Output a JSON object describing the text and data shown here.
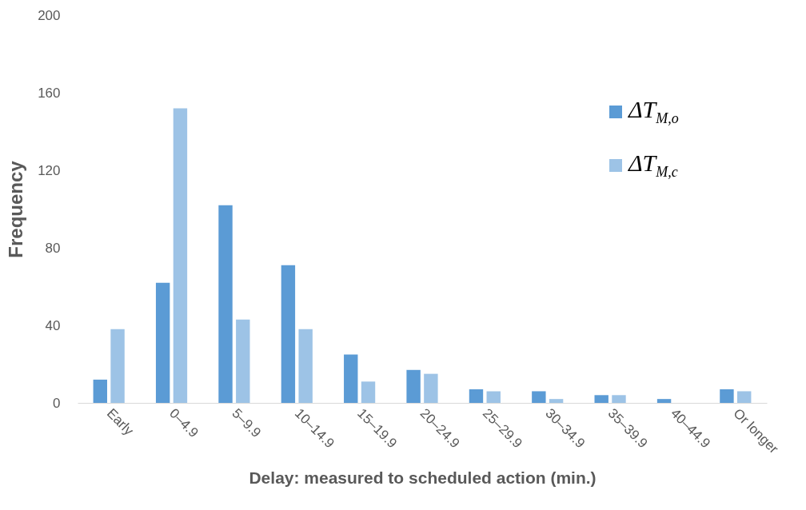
{
  "chart_data": {
    "type": "bar",
    "xlabel": "Delay: measured to scheduled action (min.)",
    "ylabel": "Frequency",
    "categories": [
      "Early",
      "0–4.9",
      "5–9.9",
      "10–14.9",
      "15–19.9",
      "20–24.9",
      "25–29.9",
      "30–34.9",
      "35–39.9",
      "40–44.9",
      "Or longer"
    ],
    "series": [
      {
        "name": "ΔT$_{M,o}$",
        "color": "#5b9bd5",
        "values": [
          12,
          62,
          102,
          71,
          25,
          17,
          7,
          6,
          4,
          2,
          7
        ]
      },
      {
        "name": "ΔT$_{M,c}$",
        "color": "#9dc3e6",
        "values": [
          38,
          152,
          43,
          38,
          11,
          15,
          6,
          2,
          4,
          0,
          6
        ]
      }
    ],
    "ylim": [
      0,
      200
    ],
    "yticks": [
      0,
      40,
      80,
      120,
      160,
      200
    ],
    "grid": false,
    "legend": "top right"
  }
}
